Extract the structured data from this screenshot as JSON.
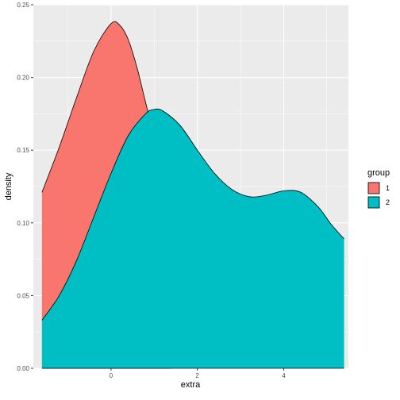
{
  "chart_data": {
    "type": "area",
    "xlabel": "extra",
    "ylabel": "density",
    "xlim": [
      -1.8,
      5.5
    ],
    "ylim": [
      0,
      0.25
    ],
    "x_ticks": [
      0,
      2,
      4
    ],
    "x_tick_labels": [
      "0",
      "2",
      "4"
    ],
    "y_ticks": [
      0.0,
      0.05,
      0.1,
      0.15,
      0.2,
      0.25
    ],
    "y_tick_labels": [
      "0.00",
      "0.05",
      "0.10",
      "0.15",
      "0.20",
      "0.25"
    ],
    "grid": true,
    "legend": {
      "title": "group",
      "placement": "right",
      "entries": [
        "1",
        "2"
      ]
    },
    "series": [
      {
        "name": "1",
        "color": "#F8766D",
        "x": [
          -1.6,
          -1.2,
          -0.8,
          -0.4,
          0.0,
          0.2,
          0.4,
          0.6,
          0.8,
          1.0,
          1.2,
          1.4
        ],
        "y": [
          0.121,
          0.152,
          0.186,
          0.218,
          0.237,
          0.236,
          0.226,
          0.207,
          0.183,
          0.16,
          0.14,
          0.125
        ]
      },
      {
        "name": "2",
        "color": "#00BFC4",
        "x": [
          -1.6,
          -1.2,
          -0.8,
          -0.4,
          0.0,
          0.4,
          0.8,
          1.0,
          1.2,
          1.6,
          2.0,
          2.4,
          2.8,
          3.2,
          3.6,
          4.0,
          4.4,
          4.8,
          5.1,
          5.4
        ],
        "y": [
          0.033,
          0.05,
          0.074,
          0.104,
          0.134,
          0.16,
          0.175,
          0.178,
          0.177,
          0.167,
          0.15,
          0.134,
          0.123,
          0.118,
          0.119,
          0.122,
          0.121,
          0.111,
          0.099,
          0.089
        ]
      }
    ]
  }
}
